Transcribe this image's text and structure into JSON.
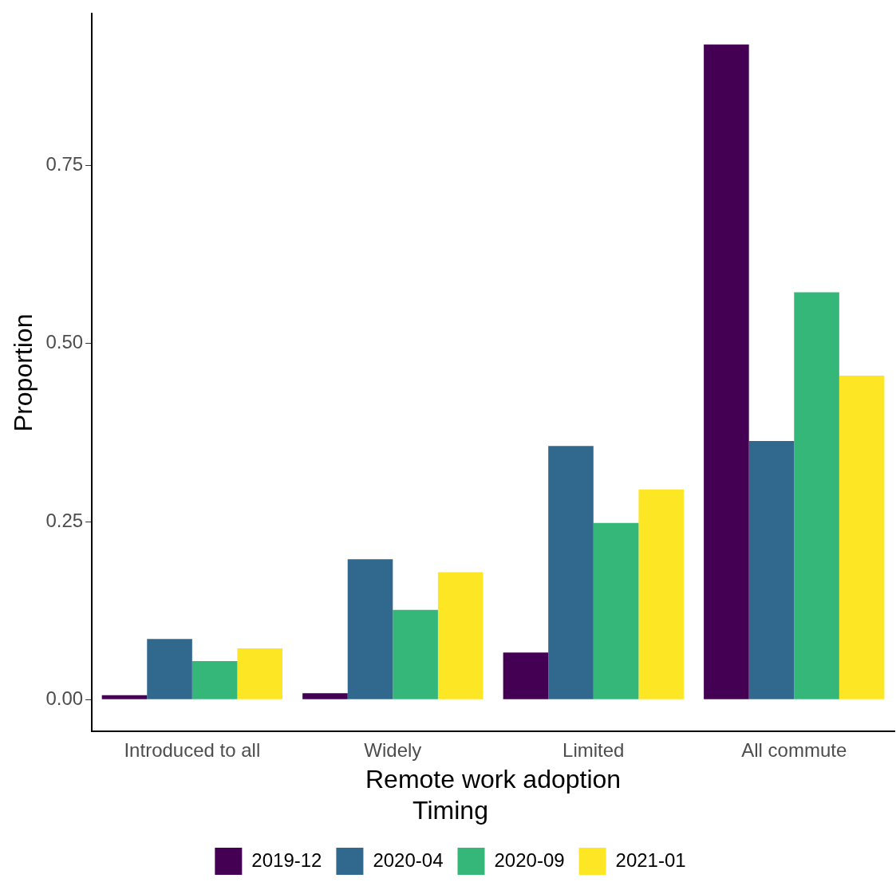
{
  "chart_data": {
    "type": "bar",
    "xlabel": "Remote work adoption",
    "ylabel": "Proportion",
    "legend_title": "Timing",
    "categories": [
      "Introduced to all",
      "Widely",
      "Limited",
      "All commute"
    ],
    "series": [
      {
        "name": "2019-12",
        "color": "#440154",
        "values": [
          0.006,
          0.009,
          0.066,
          0.92
        ]
      },
      {
        "name": "2020-04",
        "color": "#31688e",
        "values": [
          0.085,
          0.197,
          0.356,
          0.363
        ]
      },
      {
        "name": "2020-09",
        "color": "#35b779",
        "values": [
          0.054,
          0.126,
          0.248,
          0.572
        ]
      },
      {
        "name": "2021-01",
        "color": "#fde725",
        "values": [
          0.072,
          0.179,
          0.295,
          0.455
        ]
      }
    ],
    "ylim": [
      -0.045,
      0.963
    ],
    "yticks": [
      {
        "value": 0,
        "label": "0.00"
      },
      0.25,
      {
        "value": 0.5,
        "label": "0.50"
      },
      0.75
    ],
    "grid": false,
    "legend": "bottom"
  }
}
